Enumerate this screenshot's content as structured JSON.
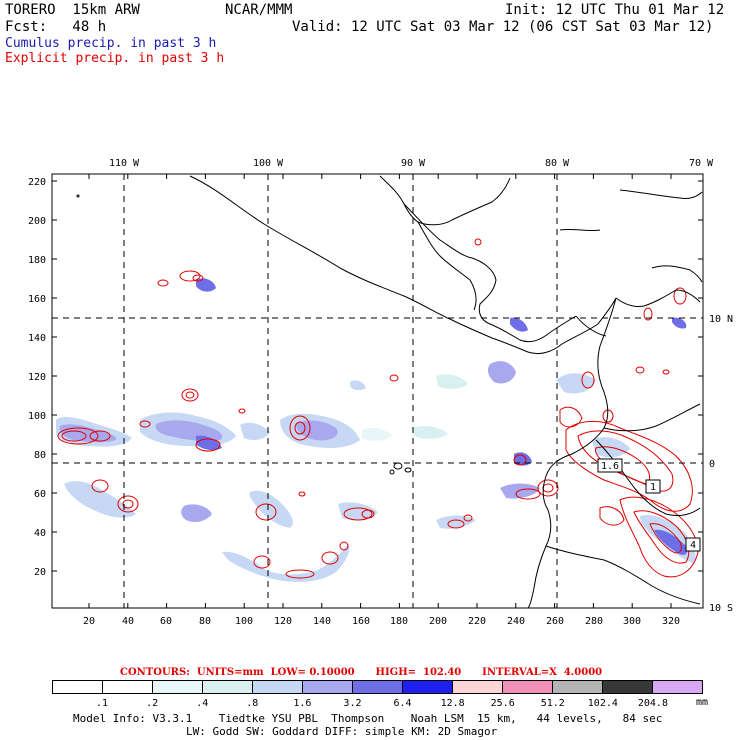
{
  "header": {
    "model": "TORERO  15km ARW",
    "org": "NCAR/MMM",
    "init": "Init: 12 UTC Thu 01 Mar 12",
    "fcst": "Fcst:   48 h",
    "valid": "Valid: 12 UTC Sat 03 Mar 12 (06 CST Sat 03 Mar 12)",
    "cumulus": "Cumulus precip. in past 3 h",
    "explicit": "Explicit precip. in past 3 h"
  },
  "map": {
    "top_lon_labels": [
      "110 W",
      "100 W",
      "90 W",
      "80 W",
      "70 W"
    ],
    "right_lat_labels": [
      "10 N",
      "0",
      "10 S"
    ],
    "y_ticks": [
      "220",
      "200",
      "180",
      "160",
      "140",
      "120",
      "100",
      "80",
      "60",
      "40",
      "20"
    ],
    "x_ticks": [
      "20",
      "40",
      "60",
      "80",
      "100",
      "120",
      "140",
      "160",
      "180",
      "200",
      "220",
      "240",
      "260",
      "280",
      "300",
      "320"
    ],
    "box_labels": [
      "1.6",
      "1",
      "4"
    ]
  },
  "legend": {
    "colors": [
      "#ffffff",
      "#ffffff",
      "#e8f6f8",
      "#d8f0f0",
      "#c6d8f4",
      "#a8a8ee",
      "#6e6ee6",
      "#2020ee",
      "#fcd6d6",
      "#f090b8",
      "#b4b4b4",
      "#383838",
      "#d8a8f4"
    ],
    "labels": [
      ".1",
      ".2",
      ".4",
      ".8",
      "1.6",
      "3.2",
      "6.4",
      "12.8",
      "25.6",
      "51.2",
      "102.4",
      "204.8"
    ],
    "unit": "mm"
  },
  "contours_line": "CONTOURS:  UNITS=mm  LOW= 0.10000      HIGH=  102.40      INTERVAL=X  4.0000",
  "model_info": {
    "line1": "Model Info: V3.3.1    Tiedtke YSU PBL  Thompson    Noah LSM  15 km,   44 levels,   84 sec",
    "line2": "LW: Godd SW: Goddard DIFF: simple KM: 2D Smagor"
  }
}
